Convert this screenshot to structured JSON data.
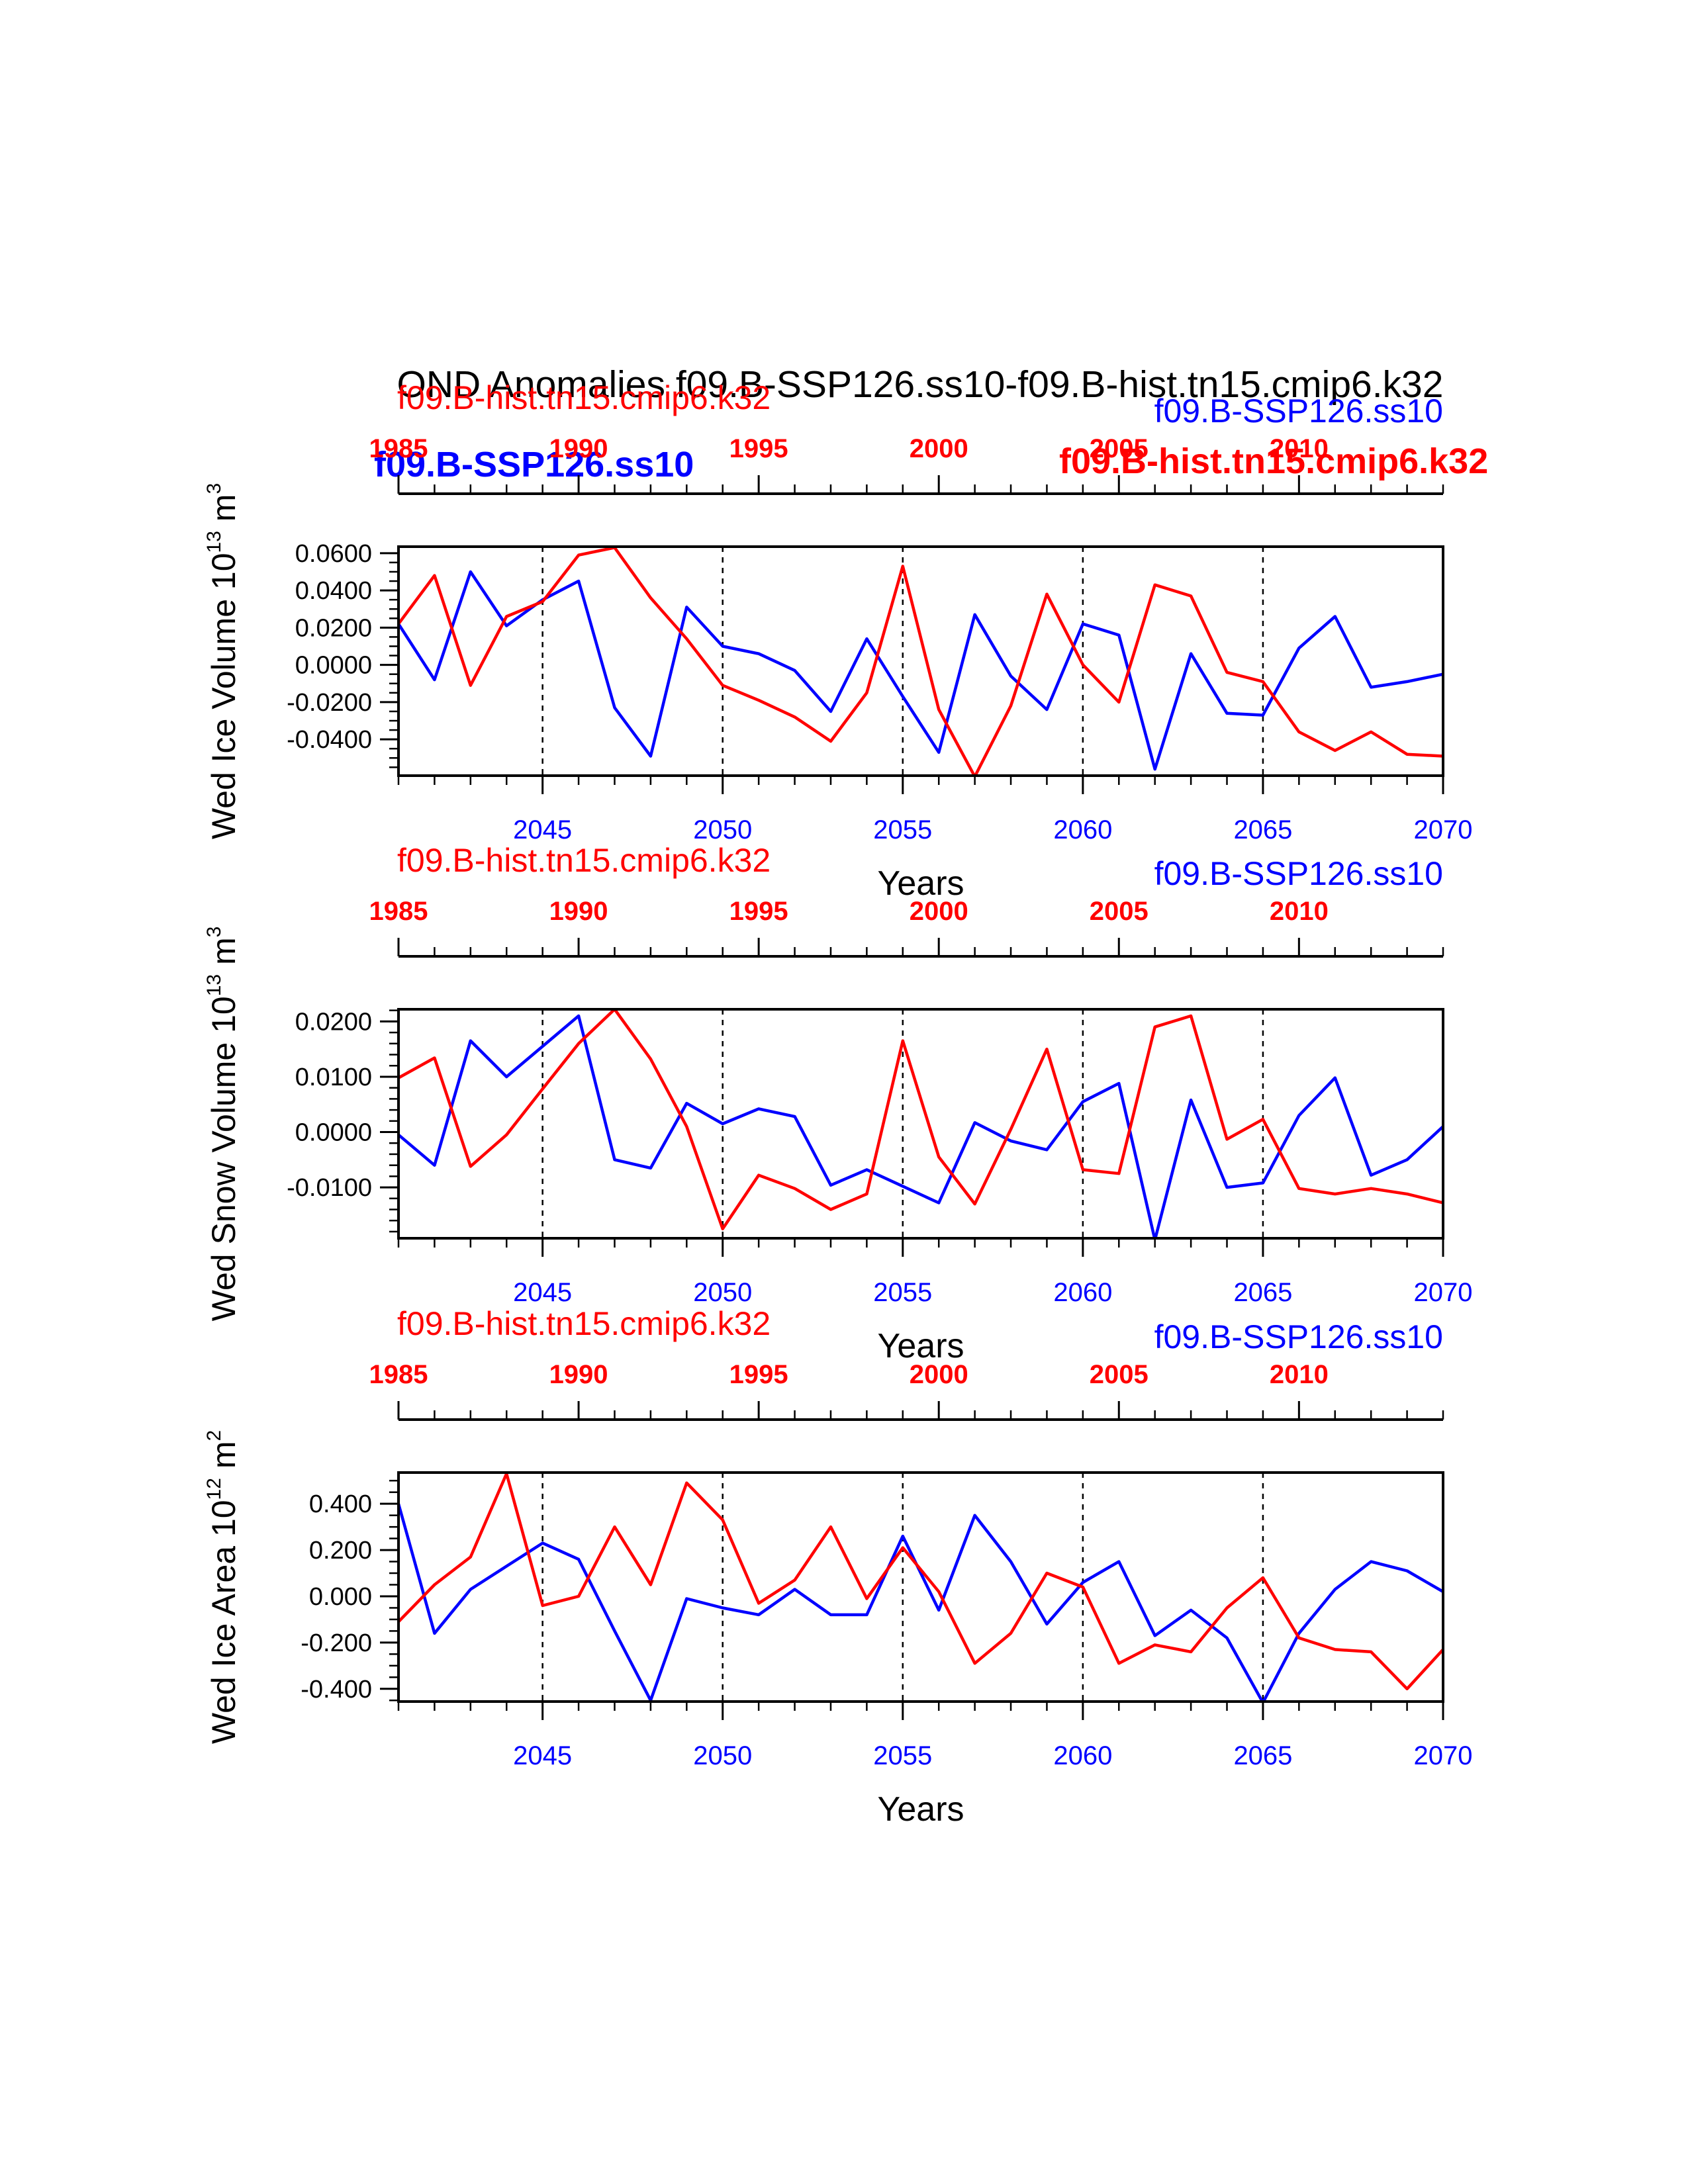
{
  "figure_title": "OND Anomalies f09.B-SSP126.ss10-f09.B-hist.tn15.cmip6.k32",
  "overlay_labels": {
    "blue_bold": "f09.B-SSP126.ss10",
    "red_bold": "f09.B-hist.tn15.cmip6.k32"
  },
  "colors": {
    "ssp": "#0000ff",
    "hist": "#ff0000",
    "axis": "#000000"
  },
  "chart_data": [
    {
      "type": "line",
      "ylabel": "Wed Ice Volume 10",
      "ylabel_exp": "13",
      "ylabel_unit": " m",
      "ylabel_unit_exp": "3",
      "xlabel": "Years",
      "legend_left": "f09.B-hist.tn15.cmip6.k32",
      "legend_right": "f09.B-SSP126.ss10",
      "ylim": [
        -0.0595,
        0.0635
      ],
      "yticks": [
        -0.04,
        -0.02,
        0.0,
        0.02,
        0.04,
        0.06
      ],
      "ytick_labels": [
        "-0.0400",
        "-0.0200",
        "0.0000",
        "0.0200",
        "0.0400",
        "0.0600"
      ],
      "yminor": 0.005,
      "series": [
        {
          "name": "f09.B-SSP126.ss10",
          "color": "#0000ff",
          "x": [
            2041,
            2042,
            2043,
            2044,
            2045,
            2046,
            2047,
            2048,
            2049,
            2050,
            2051,
            2052,
            2053,
            2054,
            2055,
            2056,
            2057,
            2058,
            2059,
            2060,
            2061,
            2062,
            2063,
            2064,
            2065,
            2066,
            2067,
            2068,
            2069,
            2070
          ],
          "values": [
            0.022,
            -0.008,
            0.05,
            0.021,
            0.035,
            0.045,
            -0.023,
            -0.049,
            0.031,
            0.01,
            0.006,
            -0.003,
            -0.025,
            0.014,
            -0.017,
            -0.047,
            0.027,
            -0.006,
            -0.024,
            0.022,
            0.016,
            -0.056,
            0.006,
            -0.026,
            -0.027,
            0.009,
            0.026,
            -0.012,
            -0.009,
            -0.005
          ]
        },
        {
          "name": "f09.B-hist.tn15.cmip6.k32",
          "color": "#ff0000",
          "x": [
            1985,
            1986,
            1987,
            1988,
            1989,
            1990,
            1991,
            1992,
            1993,
            1994,
            1995,
            1996,
            1997,
            1998,
            1999,
            2000,
            2001,
            2002,
            2003,
            2004,
            2005,
            2006,
            2007,
            2008,
            2009,
            2010,
            2011,
            2012,
            2013,
            2014
          ],
          "values": [
            0.022,
            0.048,
            -0.011,
            0.026,
            0.034,
            0.059,
            0.063,
            0.036,
            0.014,
            -0.011,
            -0.019,
            -0.028,
            -0.041,
            -0.015,
            0.053,
            -0.024,
            -0.06,
            -0.022,
            0.038,
            0.0,
            -0.02,
            0.043,
            0.037,
            -0.004,
            -0.009,
            -0.036,
            -0.046,
            -0.036,
            -0.048,
            -0.049
          ]
        }
      ]
    },
    {
      "type": "line",
      "ylabel": "Wed Snow Volume 10",
      "ylabel_exp": "13",
      "ylabel_unit": " m",
      "ylabel_unit_exp": "3",
      "xlabel": "Years",
      "legend_left": "f09.B-hist.tn15.cmip6.k32",
      "legend_right": "f09.B-SSP126.ss10",
      "ylim": [
        -0.0192,
        0.0222
      ],
      "yticks": [
        -0.01,
        0.0,
        0.01,
        0.02
      ],
      "ytick_labels": [
        "-0.0100",
        "0.0000",
        "0.0100",
        "0.0200"
      ],
      "yminor": 0.002,
      "series": [
        {
          "name": "f09.B-SSP126.ss10",
          "color": "#0000ff",
          "x": [
            2041,
            2042,
            2043,
            2044,
            2045,
            2046,
            2047,
            2048,
            2049,
            2050,
            2051,
            2052,
            2053,
            2054,
            2055,
            2056,
            2057,
            2058,
            2059,
            2060,
            2061,
            2062,
            2063,
            2064,
            2065,
            2066,
            2067,
            2068,
            2069,
            2070
          ],
          "values": [
            -0.0005,
            -0.006,
            0.0165,
            0.01,
            0.0155,
            0.021,
            -0.005,
            -0.0065,
            0.0052,
            0.0015,
            0.0042,
            0.0028,
            -0.0096,
            -0.0068,
            -0.0098,
            -0.0128,
            0.0017,
            -0.0016,
            -0.0032,
            0.0055,
            0.0088,
            -0.0195,
            0.0058,
            -0.01,
            -0.0092,
            0.003,
            0.0098,
            -0.0078,
            -0.005,
            0.001
          ]
        },
        {
          "name": "f09.B-hist.tn15.cmip6.k32",
          "color": "#ff0000",
          "x": [
            1985,
            1986,
            1987,
            1988,
            1989,
            1990,
            1991,
            1992,
            1993,
            1994,
            1995,
            1996,
            1997,
            1998,
            1999,
            2000,
            2001,
            2002,
            2003,
            2004,
            2005,
            2006,
            2007,
            2008,
            2009,
            2010,
            2011,
            2012,
            2013,
            2014
          ],
          "values": [
            0.0098,
            0.0134,
            -0.0062,
            -0.0005,
            0.0078,
            0.016,
            0.0222,
            0.0132,
            0.001,
            -0.0175,
            -0.0078,
            -0.0102,
            -0.014,
            -0.0112,
            0.0165,
            -0.0045,
            -0.013,
            0.0005,
            0.015,
            -0.0068,
            -0.0075,
            0.019,
            0.021,
            -0.0013,
            0.0023,
            -0.0102,
            -0.0112,
            -0.0102,
            -0.0112,
            -0.0128
          ]
        }
      ]
    },
    {
      "type": "line",
      "ylabel": "Wed Ice Area 10",
      "ylabel_exp": "12",
      "ylabel_unit": " m",
      "ylabel_unit_exp": "2",
      "xlabel": "Years",
      "legend_left": "f09.B-hist.tn15.cmip6.k32",
      "legend_right": "f09.B-SSP126.ss10",
      "ylim": [
        -0.455,
        0.535
      ],
      "yticks": [
        -0.4,
        -0.2,
        0.0,
        0.2,
        0.4
      ],
      "ytick_labels": [
        "-0.400",
        "-0.200",
        "0.000",
        "0.200",
        "0.400"
      ],
      "yminor": 0.05,
      "series": [
        {
          "name": "f09.B-SSP126.ss10",
          "color": "#0000ff",
          "x": [
            2041,
            2042,
            2043,
            2044,
            2045,
            2046,
            2047,
            2048,
            2049,
            2050,
            2051,
            2052,
            2053,
            2054,
            2055,
            2056,
            2057,
            2058,
            2059,
            2060,
            2061,
            2062,
            2063,
            2064,
            2065,
            2066,
            2067,
            2068,
            2069,
            2070
          ],
          "values": [
            0.4,
            -0.16,
            0.03,
            0.13,
            0.23,
            0.16,
            -0.15,
            -0.45,
            -0.01,
            -0.05,
            -0.08,
            0.03,
            -0.08,
            -0.08,
            0.26,
            -0.06,
            0.35,
            0.15,
            -0.12,
            0.06,
            0.15,
            -0.17,
            -0.06,
            -0.18,
            -0.46,
            -0.16,
            0.03,
            0.15,
            0.11,
            0.02
          ]
        },
        {
          "name": "f09.B-hist.tn15.cmip6.k32",
          "color": "#ff0000",
          "x": [
            1985,
            1986,
            1987,
            1988,
            1989,
            1990,
            1991,
            1992,
            1993,
            1994,
            1995,
            1996,
            1997,
            1998,
            1999,
            2000,
            2001,
            2002,
            2003,
            2004,
            2005,
            2006,
            2007,
            2008,
            2009,
            2010,
            2011,
            2012,
            2013,
            2014
          ],
          "values": [
            -0.11,
            0.05,
            0.17,
            0.53,
            -0.04,
            0.0,
            0.3,
            0.05,
            0.49,
            0.33,
            -0.03,
            0.07,
            0.3,
            -0.01,
            0.21,
            0.02,
            -0.29,
            -0.16,
            0.1,
            0.04,
            -0.29,
            -0.21,
            -0.24,
            -0.05,
            0.08,
            -0.18,
            -0.23,
            -0.24,
            -0.4,
            -0.23
          ]
        }
      ]
    }
  ],
  "x_bottom": {
    "range": [
      2041,
      2070
    ],
    "major_ticks": [
      2045,
      2050,
      2055,
      2060,
      2065,
      2070
    ],
    "tick_labels": [
      "2045",
      "2050",
      "2055",
      "2060",
      "2065",
      "2070"
    ]
  },
  "x_top": {
    "range": [
      1985,
      2014
    ],
    "major_ticks": [
      1985,
      1990,
      1995,
      2000,
      2005,
      2010
    ],
    "tick_labels": [
      "1985",
      "1990",
      "1995",
      "2000",
      "2005",
      "2010"
    ]
  },
  "reference_lines": [
    2045,
    2050,
    2055,
    2060,
    2065
  ]
}
